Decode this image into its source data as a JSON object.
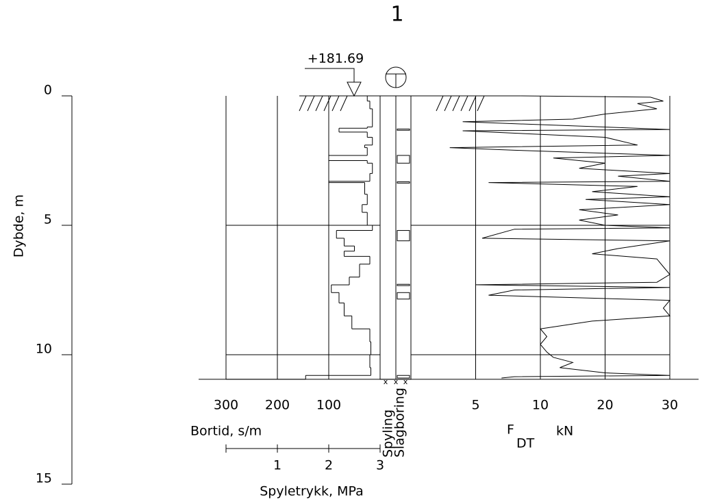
{
  "chart_data": {
    "type": "sounding",
    "title": "1",
    "elevation_label": "+181.69",
    "depth": {
      "label": "Dybde, m",
      "ylim": [
        0,
        15
      ],
      "yticks": [
        0,
        5,
        10,
        15
      ],
      "grid": true
    },
    "bortid": {
      "label": "Bortid, s/m",
      "xlim": [
        300,
        0
      ],
      "xticks": [
        300,
        200,
        100
      ],
      "step": true,
      "depths": [
        0.0,
        0.2,
        0.5,
        1.2,
        1.25,
        1.4,
        1.6,
        1.9,
        2.0,
        2.3,
        2.5,
        2.6,
        3.0,
        3.3,
        3.35,
        3.8,
        4.2,
        4.5,
        5.0,
        5.2,
        5.5,
        5.8,
        6.0,
        6.2,
        6.5,
        7.0,
        7.3,
        7.6,
        8.0,
        8.5,
        9.0,
        9.5,
        10.0,
        10.5,
        10.8,
        10.95
      ],
      "values": [
        25,
        20,
        15,
        25,
        80,
        25,
        15,
        30,
        25,
        100,
        25,
        15,
        20,
        100,
        30,
        25,
        35,
        25,
        15,
        85,
        70,
        50,
        70,
        20,
        40,
        60,
        95,
        80,
        70,
        55,
        20,
        18,
        20,
        18,
        145,
        300
      ]
    },
    "spyletrykk": {
      "label": "Spyletrykk, MPa",
      "xlim": [
        0,
        3
      ],
      "xticks": [
        1,
        2,
        3
      ]
    },
    "columns": [
      "Spyling",
      "Slagboring"
    ],
    "slagboring_intervals": [
      [
        1.28,
        1.33
      ],
      [
        2.3,
        2.6
      ],
      [
        3.32,
        3.37
      ],
      [
        5.2,
        5.6
      ],
      [
        7.28,
        7.33
      ],
      [
        7.6,
        7.85
      ],
      [
        10.8,
        10.9
      ]
    ],
    "force": {
      "label": "F",
      "label_sub": "DT",
      "unit": "kN",
      "xlim": [
        0,
        30
      ],
      "xticks": [
        5,
        10,
        20,
        30
      ],
      "depths": [
        0.0,
        0.05,
        0.2,
        0.3,
        0.5,
        0.7,
        0.9,
        1.0,
        1.3,
        1.35,
        1.6,
        1.9,
        2.0,
        2.1,
        2.3,
        2.4,
        2.6,
        2.8,
        3.0,
        3.1,
        3.3,
        3.35,
        3.5,
        3.7,
        3.9,
        4.0,
        4.2,
        4.4,
        4.6,
        4.8,
        5.0,
        5.1,
        5.15,
        5.5,
        5.6,
        5.9,
        6.1,
        6.3,
        6.6,
        6.9,
        7.2,
        7.3,
        7.4,
        7.5,
        7.7,
        7.9,
        8.2,
        8.5,
        8.7,
        9.0,
        9.3,
        9.6,
        9.9,
        10.1,
        10.3,
        10.5,
        10.7,
        10.8,
        10.85,
        10.9
      ],
      "values": [
        8.5,
        27,
        29,
        25,
        28,
        20,
        15,
        4,
        30,
        4,
        20,
        25,
        3,
        8,
        30,
        12,
        20,
        16,
        30,
        22,
        30,
        6,
        25,
        18,
        30,
        17,
        30,
        16,
        22,
        16,
        20,
        30,
        8,
        5.5,
        30,
        22,
        18,
        28,
        29,
        30,
        28,
        5,
        30,
        8,
        6,
        30,
        29,
        30,
        18,
        10,
        11,
        10,
        11,
        12,
        15,
        13,
        20,
        30,
        8,
        7
      ]
    }
  }
}
